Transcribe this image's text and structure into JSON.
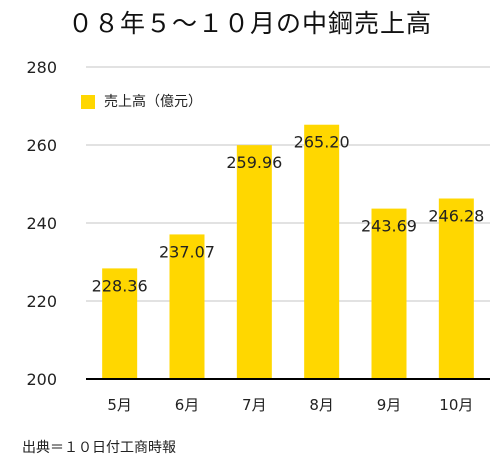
{
  "title": "０８年５～１０月の中鋼売上高",
  "source": "出典＝１０日付工商時報",
  "colors": {
    "bar": "#FFD700",
    "grid": "#D9D9D9",
    "axis": "#000000",
    "text": "#222222"
  },
  "chart_data": {
    "type": "bar",
    "title": "０８年５～１０月の中鋼売上高",
    "xlabel": "",
    "ylabel": "",
    "categories": [
      "5月",
      "6月",
      "7月",
      "8月",
      "9月",
      "10月"
    ],
    "series": [
      {
        "name": "売上高（億元）",
        "values": [
          228.36,
          237.07,
          259.96,
          265.2,
          243.69,
          246.28
        ],
        "labels": [
          "228.36",
          "237.07",
          "259.96",
          "265.20",
          "243.69",
          "246.28"
        ]
      }
    ],
    "ylim": [
      200,
      280
    ],
    "yticks": [
      "200",
      "220",
      "240",
      "260",
      "280"
    ],
    "grid": true,
    "legend": "top-left"
  }
}
